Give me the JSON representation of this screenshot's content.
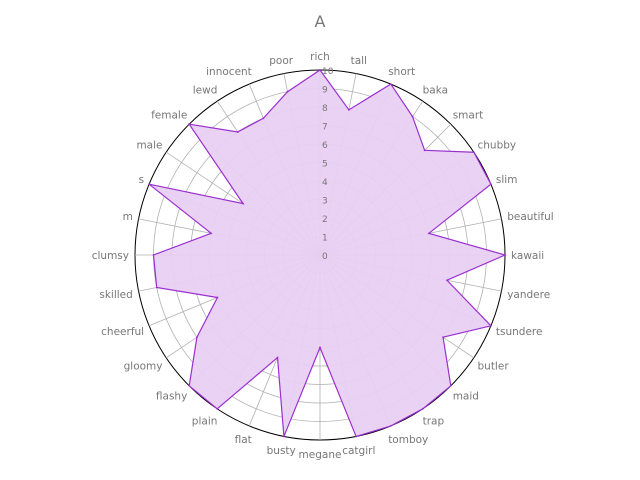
{
  "chart_data": {
    "type": "radar",
    "title": "A",
    "categories": [
      "rich",
      "tall",
      "short",
      "baka",
      "smart",
      "chubby",
      "slim",
      "beautiful",
      "kawaii",
      "yandere",
      "tsundere",
      "butler",
      "maid",
      "trap",
      "tomboy",
      "catgirl",
      "megane",
      "busty",
      "flat",
      "plain",
      "flashy",
      "gloomy",
      "cheerful",
      "skilled",
      "clumsy",
      "m",
      "s",
      "male",
      "female",
      "lewd",
      "innocent",
      "poor"
    ],
    "series": [
      {
        "name": "",
        "values": [
          10,
          8,
          10,
          9,
          8,
          10,
          10,
          6,
          10,
          7,
          10,
          8,
          10,
          10,
          10,
          10,
          5,
          10,
          6,
          10,
          10,
          8,
          6,
          9,
          9,
          6,
          10,
          5,
          10,
          8,
          8,
          9
        ]
      }
    ],
    "rlim": [
      0,
      10
    ],
    "radial_ticks": [
      0,
      1,
      2,
      3,
      4,
      5,
      6,
      7,
      8,
      9,
      10
    ],
    "grid": true,
    "colors": {
      "line": "#9b30d0",
      "fill": "#e8d0f2",
      "grid": "#b0b0b0",
      "outer_ring": "#000000",
      "text": "#777777"
    }
  }
}
